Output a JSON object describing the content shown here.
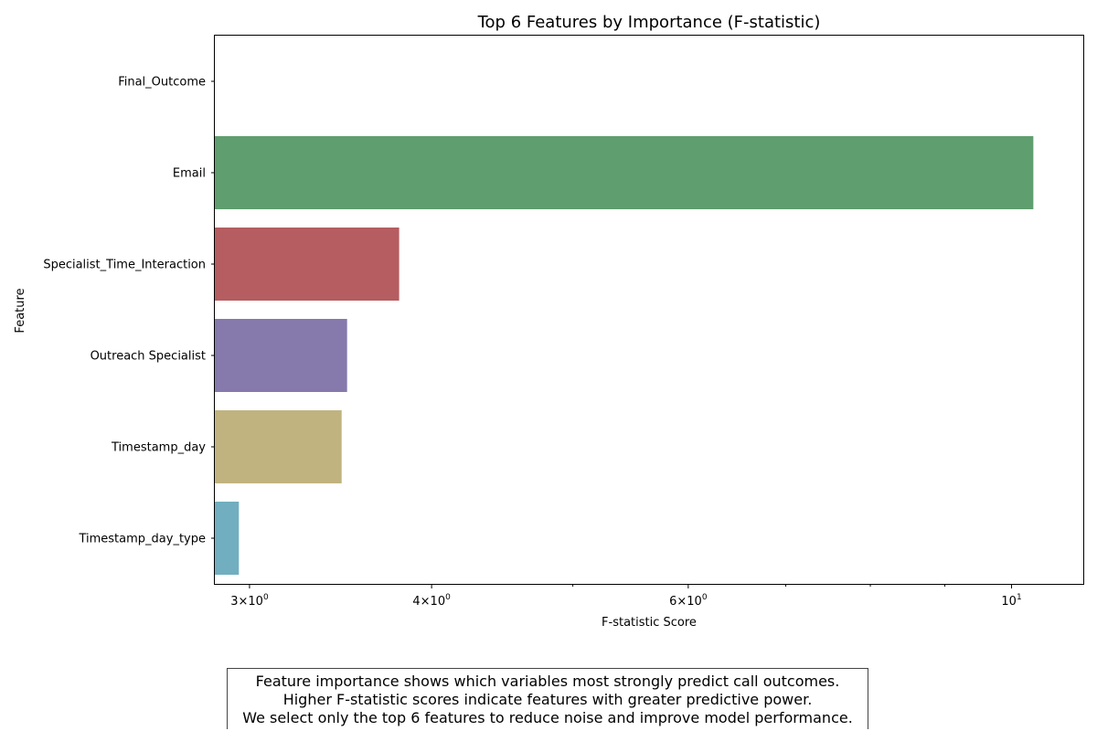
{
  "chart_data": {
    "type": "bar",
    "orientation": "horizontal",
    "title": "Top 6 Features by Importance (F-statistic)",
    "xlabel": "F-statistic Score",
    "ylabel": "Feature",
    "xscale": "log",
    "xlim": [
      2.84,
      11.2
    ],
    "xticks": [
      {
        "value": 3,
        "base": "3×10",
        "exp": "0"
      },
      {
        "value": 4,
        "base": "4×10",
        "exp": "0"
      },
      {
        "value": 6,
        "base": "6×10",
        "exp": "0"
      },
      {
        "value": 10,
        "base": "10",
        "exp": "1"
      }
    ],
    "minor_ticks": [
      5,
      7,
      8,
      9
    ],
    "categories": [
      "Final_Outcome",
      "Email",
      "Specialist_Time_Interaction",
      "Outreach Specialist",
      "Timestamp_day",
      "Timestamp_day_type"
    ],
    "values": [
      null,
      10.35,
      3.8,
      3.5,
      3.47,
      2.95
    ],
    "colors": [
      "#4c72b0",
      "#5f9e6e",
      "#b55d60",
      "#857aab",
      "#c1b37f",
      "#71aec0"
    ],
    "grid": false,
    "legend": "none"
  },
  "note": {
    "lines": [
      "Feature importance shows which variables most strongly predict call outcomes.",
      "Higher F-statistic scores indicate features with greater predictive power.",
      "We select only the top 6 features to reduce noise and improve model performance."
    ]
  }
}
